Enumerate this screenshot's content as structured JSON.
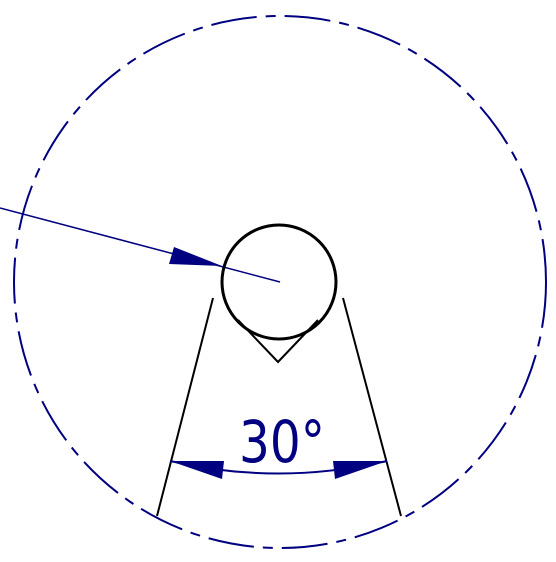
{
  "diagram": {
    "angle_label": "30°",
    "colors": {
      "dimension": "#000080",
      "outline": "#000000",
      "background": "#ffffff"
    }
  }
}
